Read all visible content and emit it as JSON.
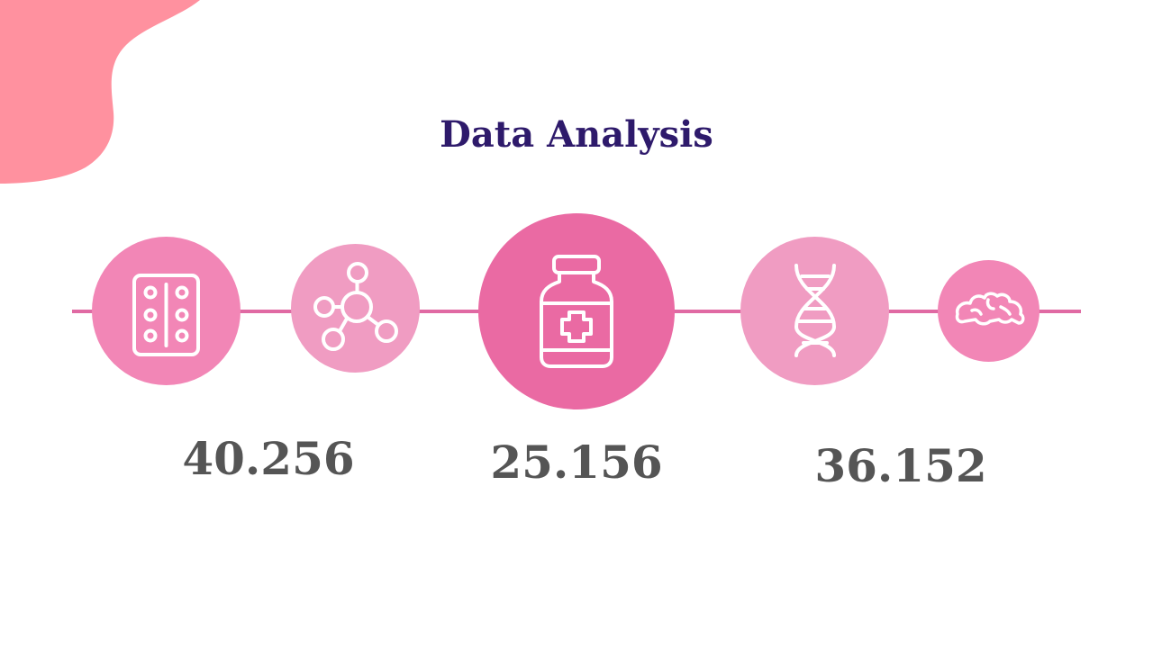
{
  "slide": {
    "title": "Data Analysis",
    "colors": {
      "title": "#2e1a6b",
      "accent_blob": "#ff919f",
      "timeline": "#e06aa3",
      "circle_pink": "#f286b6",
      "circle_light": "#f09cc2",
      "circle_dark": "#ea6aa3",
      "icon_stroke": "#ffffff",
      "stat_text": "#555555"
    }
  },
  "icons": [
    {
      "name": "pill-blister-icon",
      "color_key": "circle_pink"
    },
    {
      "name": "molecule-icon",
      "color_key": "circle_light"
    },
    {
      "name": "medicine-bottle-icon",
      "color_key": "circle_dark"
    },
    {
      "name": "dna-icon",
      "color_key": "circle_light"
    },
    {
      "name": "brain-icon",
      "color_key": "circle_pink"
    }
  ],
  "stats": [
    {
      "value": "40.256"
    },
    {
      "value": "25.156"
    },
    {
      "value": "36.152"
    }
  ]
}
